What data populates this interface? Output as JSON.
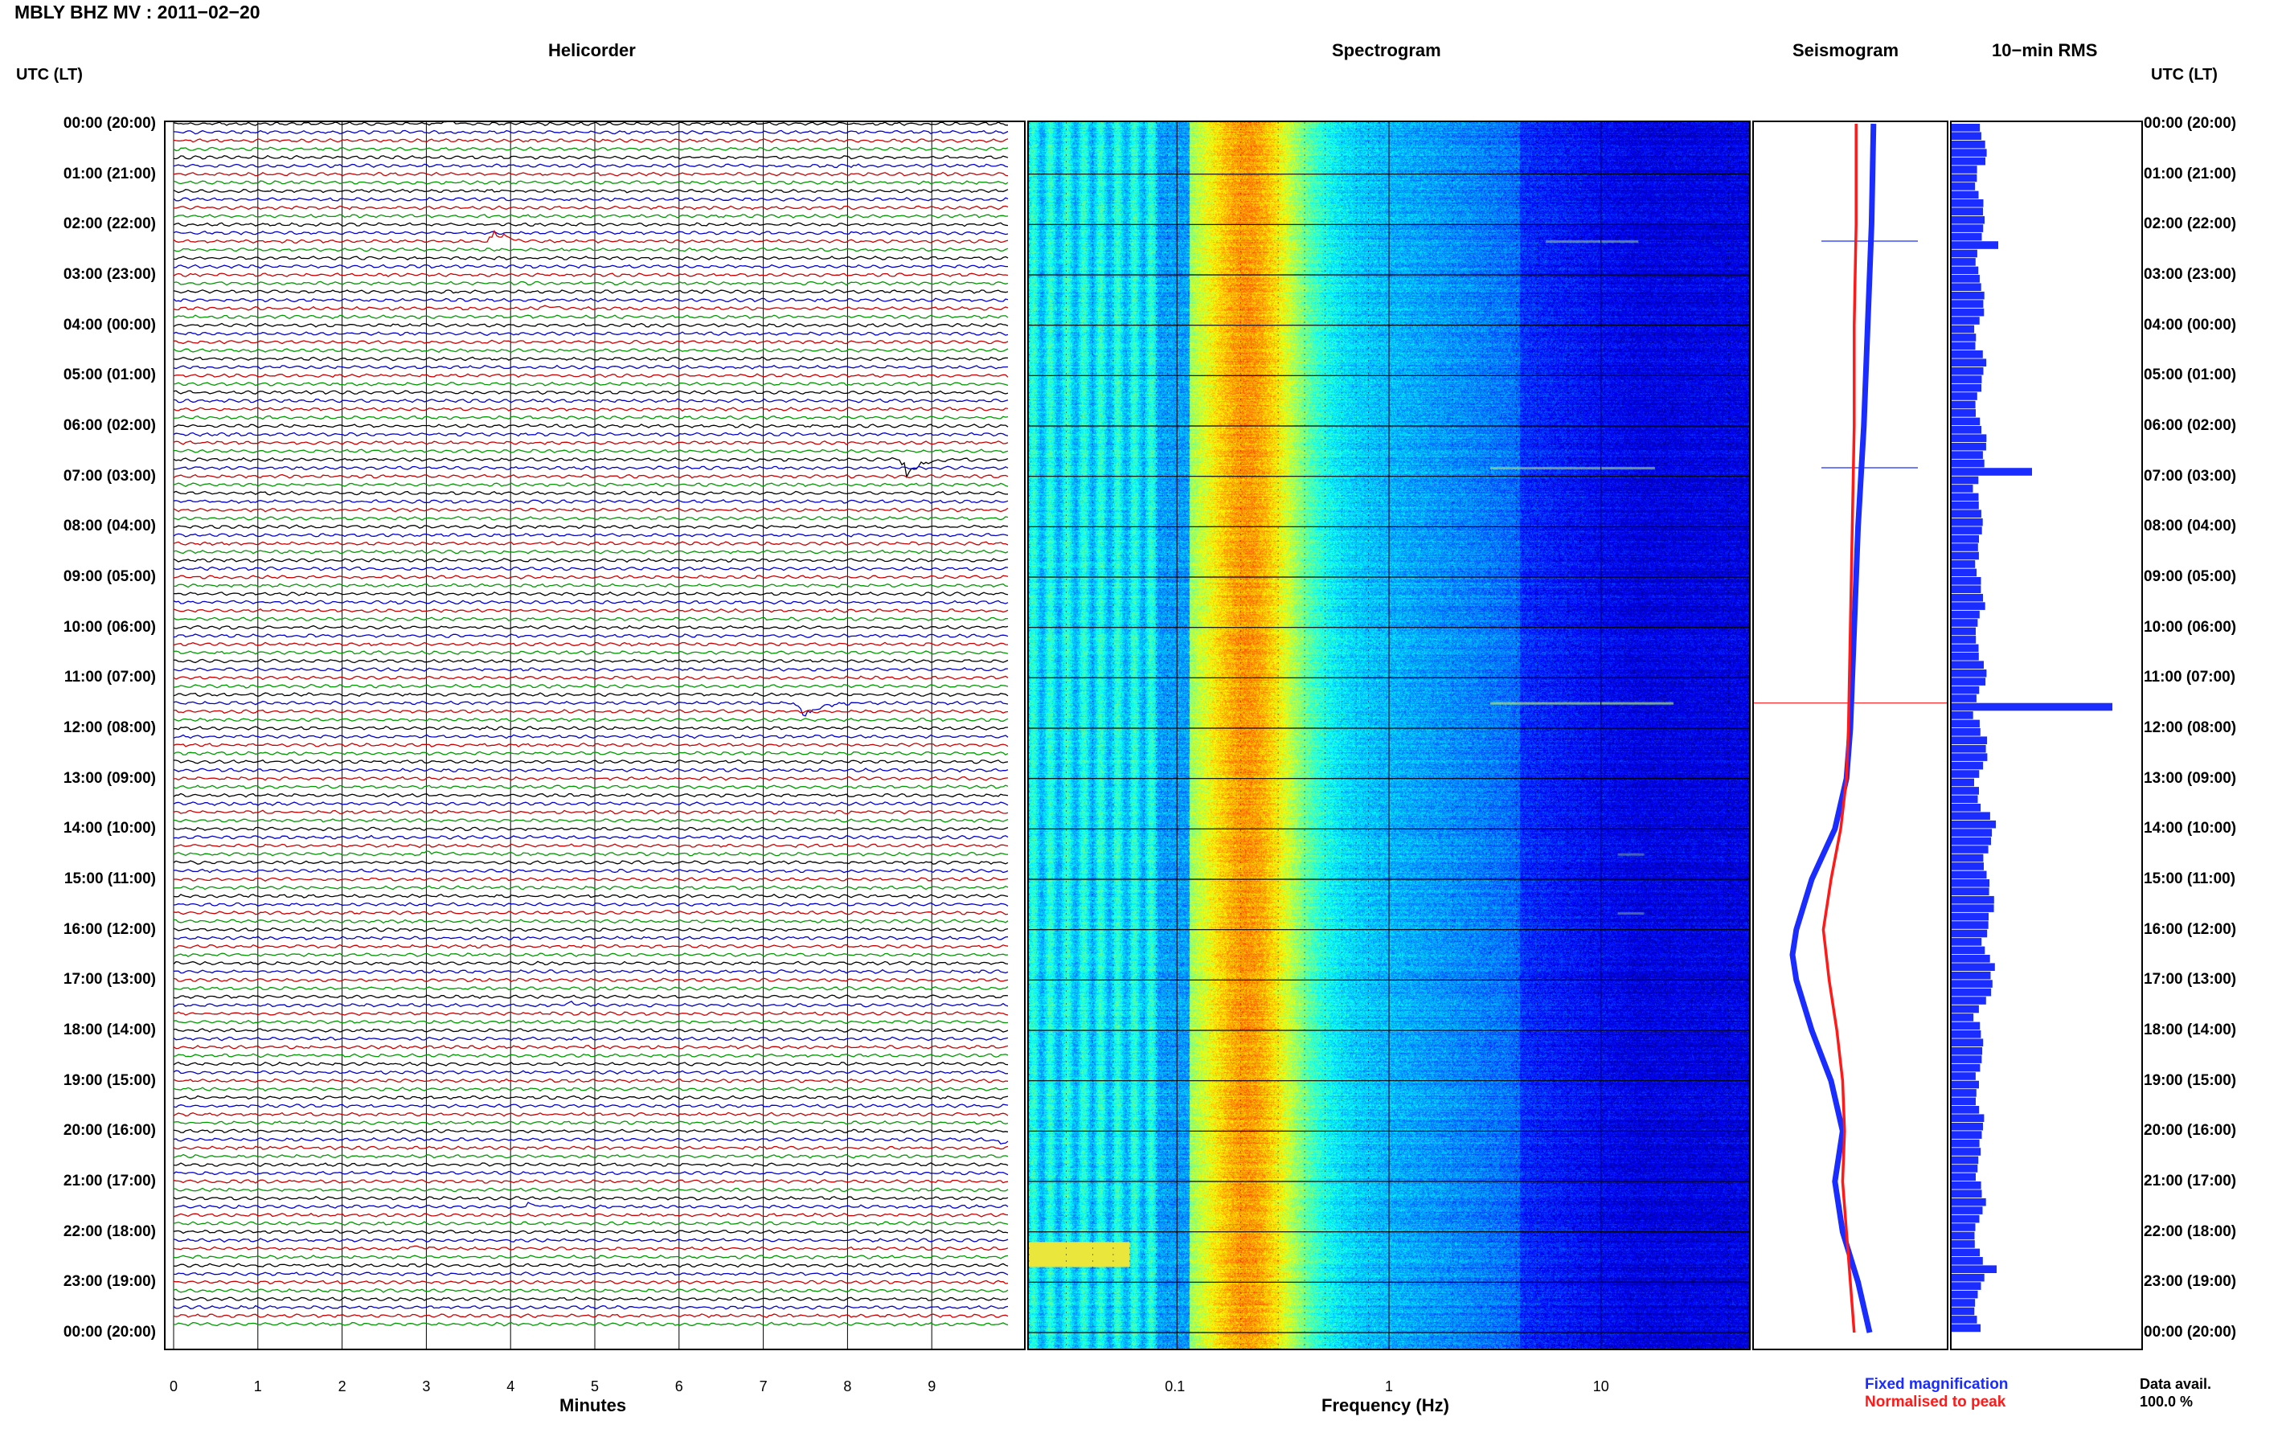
{
  "header": {
    "title": "MBLY BHZ MV : 2011−02−20"
  },
  "panels": {
    "helicorder": "Helicorder",
    "spectrogram": "Spectrogram",
    "seismogram": "Seismogram",
    "rms": "10−min RMS"
  },
  "time_axis": {
    "header_left": "UTC (LT)",
    "header_right": "UTC (LT)",
    "labels": [
      "00:00 (20:00)",
      "01:00 (21:00)",
      "02:00 (22:00)",
      "03:00 (23:00)",
      "04:00 (00:00)",
      "05:00 (01:00)",
      "06:00 (02:00)",
      "07:00 (03:00)",
      "08:00 (04:00)",
      "09:00 (05:00)",
      "10:00 (06:00)",
      "11:00 (07:00)",
      "12:00 (08:00)",
      "13:00 (09:00)",
      "14:00 (10:00)",
      "15:00 (11:00)",
      "16:00 (12:00)",
      "17:00 (13:00)",
      "18:00 (14:00)",
      "19:00 (15:00)",
      "20:00 (16:00)",
      "21:00 (17:00)",
      "22:00 (18:00)",
      "23:00 (19:00)",
      "00:00 (20:00)"
    ]
  },
  "footer": {
    "legend_fixed": "Fixed magnification",
    "legend_normalised": "Normalised to peak",
    "data_avail_label": "Data avail.",
    "data_avail_value": "100.0 %"
  },
  "colors": {
    "trace_cycle": [
      "#000000",
      "#0000cc",
      "#cc0000",
      "#009900"
    ],
    "fixed": "#1a2cff",
    "normalised": "#ff1a1a",
    "rms_bar": "#1a2cff"
  },
  "chart_data": [
    {
      "type": "line",
      "name": "helicorder",
      "title": "Helicorder",
      "xlabel": "Minutes",
      "xlim": [
        0,
        10
      ],
      "x_ticks": [
        0,
        1,
        2,
        3,
        4,
        5,
        6,
        7,
        8,
        9
      ],
      "rows_per_hour": 6,
      "hours": 24,
      "events": [
        {
          "hour": 0.0,
          "minute": 3.2,
          "amp": 0.4
        },
        {
          "hour": 0.83,
          "minute": 7.4,
          "amp": 0.4
        },
        {
          "hour": 2.3,
          "minute": 3.8,
          "amp": 1.3
        },
        {
          "hour": 3.67,
          "minute": 4.4,
          "amp": 0.35
        },
        {
          "hour": 6.67,
          "minute": 8.7,
          "amp": 2.2
        },
        {
          "hour": 11.5,
          "minute": 7.45,
          "amp": 7.0
        },
        {
          "hour": 14.5,
          "minute": 3.0,
          "amp": 0.45
        },
        {
          "hour": 15.67,
          "minute": 1.4,
          "amp": 0.5
        },
        {
          "hour": 15.67,
          "minute": 5.8,
          "amp": 0.35
        },
        {
          "hour": 17.5,
          "minute": 4.7,
          "amp": 0.4
        },
        {
          "hour": 20.17,
          "minute": 9.8,
          "amp": 0.6
        },
        {
          "hour": 21.5,
          "minute": 4.2,
          "amp": 0.35
        },
        {
          "hour": 22.33,
          "minute": 2.8,
          "amp": 0.45
        }
      ]
    },
    {
      "type": "heatmap",
      "name": "spectrogram",
      "title": "Spectrogram",
      "xlabel": "Frequency (Hz)",
      "x_scale": "log",
      "xlim": [
        0.02,
        50
      ],
      "x_ticks": [
        0.1,
        1,
        10
      ],
      "tick_labels": [
        "0.1",
        "1",
        "10"
      ],
      "peak_band_hz": 0.22,
      "lines": [
        {
          "hour": 2.33,
          "from_hz": 5.5,
          "to_hz": 15,
          "intensity": 0.5
        },
        {
          "hour": 6.83,
          "from_hz": 3.0,
          "to_hz": 18,
          "intensity": 0.6
        },
        {
          "hour": 11.5,
          "from_hz": 3.0,
          "to_hz": 22,
          "intensity": 0.7
        },
        {
          "hour": 14.5,
          "from_hz": 12,
          "to_hz": 16,
          "intensity": 0.4
        },
        {
          "hour": 15.67,
          "from_hz": 12,
          "to_hz": 16,
          "intensity": 0.4
        }
      ],
      "low_freq_patch": {
        "hour_from": 22.2,
        "hour_to": 22.7,
        "from_hz": 0.02,
        "to_hz": 0.06
      }
    },
    {
      "type": "line",
      "name": "seismogram",
      "title": "Seismogram",
      "series": [
        {
          "name": "Fixed magnification",
          "color": "#1a2cff",
          "points": [
            [
              0,
              0.62
            ],
            [
              2,
              0.61
            ],
            [
              4,
              0.59
            ],
            [
              6,
              0.57
            ],
            [
              8,
              0.54
            ],
            [
              10,
              0.52
            ],
            [
              12,
              0.5
            ],
            [
              13,
              0.48
            ],
            [
              14,
              0.42
            ],
            [
              15,
              0.3
            ],
            [
              16,
              0.22
            ],
            [
              16.5,
              0.2
            ],
            [
              17,
              0.22
            ],
            [
              18,
              0.3
            ],
            [
              19,
              0.4
            ],
            [
              20,
              0.46
            ],
            [
              21,
              0.42
            ],
            [
              22,
              0.46
            ],
            [
              23,
              0.54
            ],
            [
              24,
              0.6
            ]
          ]
        },
        {
          "name": "Normalised to peak",
          "color": "#ff1a1a",
          "points": [
            [
              0,
              0.53
            ],
            [
              2,
              0.53
            ],
            [
              4,
              0.52
            ],
            [
              6,
              0.52
            ],
            [
              8,
              0.51
            ],
            [
              10,
              0.5
            ],
            [
              12,
              0.49
            ],
            [
              13,
              0.48
            ],
            [
              14,
              0.45
            ],
            [
              15,
              0.4
            ],
            [
              16,
              0.36
            ],
            [
              17,
              0.39
            ],
            [
              18,
              0.43
            ],
            [
              19,
              0.46
            ],
            [
              20,
              0.47
            ],
            [
              21,
              0.46
            ],
            [
              22,
              0.48
            ],
            [
              23,
              0.5
            ],
            [
              24,
              0.52
            ]
          ]
        }
      ],
      "spikes": [
        {
          "hour": 2.33,
          "from": 0.35,
          "to": 0.85
        },
        {
          "hour": 6.83,
          "from": 0.35,
          "to": 0.85
        },
        {
          "hour": 11.5,
          "from": 0.0,
          "to": 1.0
        }
      ]
    },
    {
      "type": "bar",
      "name": "rms",
      "title": "10−min RMS",
      "orientation": "horizontal",
      "bins_per_hour": 6,
      "baseline": 0.18,
      "spikes": [
        {
          "hour": 2.33,
          "value": 0.29
        },
        {
          "hour": 6.83,
          "value": 0.5
        },
        {
          "hour": 11.5,
          "value": 1.0
        },
        {
          "hour": 16.5,
          "value": 0.22
        },
        {
          "hour": 22.67,
          "value": 0.28
        }
      ]
    }
  ]
}
